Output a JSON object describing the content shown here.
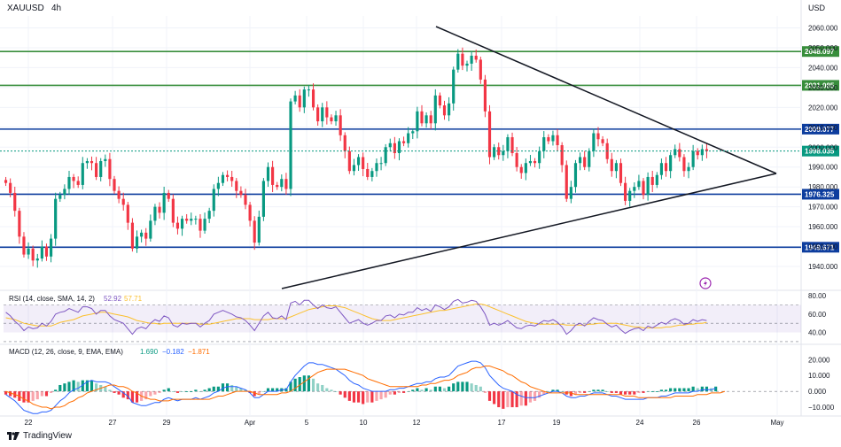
{
  "symbol": "XAUUSD",
  "timeframe": "4h",
  "currency_label": "USD",
  "brand": "TradingView",
  "chart_data": {
    "type": "candlestick",
    "title": "XAUUSD, 4h",
    "ylim": [
      1928,
      2066
    ],
    "price_ticks": [
      "2060.000",
      "2050.000",
      "2040.000",
      "2030.000",
      "2020.000",
      "2010.000",
      "2000.000",
      "1990.000",
      "1980.000",
      "1970.000",
      "1960.000",
      "1950.000",
      "1940.000"
    ],
    "x_ticks": [
      "22",
      "27",
      "29",
      "Apr",
      "5",
      "10",
      "12",
      "17",
      "19",
      "24",
      "26",
      "May"
    ],
    "series": [
      {
        "name": "XAUUSD",
        "closes": [
          1982,
          1977,
          1968,
          1955,
          1946,
          1949,
          1943,
          1944,
          1950,
          1945,
          1954,
          1974,
          1976,
          1979,
          1985,
          1983,
          1981,
          1992,
          1993,
          1992,
          1985,
          1993,
          1994,
          1984,
          1978,
          1974,
          1971,
          1962,
          1949,
          1955,
          1957,
          1954,
          1963,
          1970,
          1967,
          1977,
          1974,
          1962,
          1959,
          1964,
          1963,
          1964,
          1964,
          1958,
          1964,
          1968,
          1979,
          1982,
          1986,
          1985,
          1983,
          1978,
          1976,
          1971,
          1963,
          1952,
          1965,
          1983,
          1990,
          1981,
          1980,
          1984,
          1979,
          2023,
          2026,
          2020,
          2029,
          2029,
          2020,
          2013,
          2020,
          2015,
          2013,
          2016,
          2006,
          1998,
          1988,
          1991,
          1995,
          1989,
          1985,
          1988,
          1992,
          1992,
          2000,
          2002,
          1997,
          2003,
          2002,
          2007,
          2008,
          2018,
          2012,
          2016,
          2012,
          2026,
          2021,
          2016,
          2022,
          2039,
          2047,
          2041,
          2042,
          2046,
          2044,
          2034,
          2018,
          1995,
          2000,
          1996,
          1998,
          2005,
          1997,
          1990,
          1987,
          1992,
          1993,
          1992,
          1998,
          2005,
          2003,
          2006,
          2001,
          1991,
          1974,
          1980,
          1992,
          1995,
          1990,
          1998,
          2007,
          2004,
          2002,
          1994,
          1988,
          1992,
          1982,
          1973,
          1978,
          1980,
          1983,
          1976,
          1985,
          1981,
          1986,
          1992,
          1988,
          1996,
          1999,
          1995,
          1988,
          1990,
          1998,
          1996,
          1999,
          1998
        ],
        "last_close": "1998.035"
      }
    ],
    "levels": [
      {
        "label": "2048.097",
        "value": 2048.097,
        "color": "#388e3c"
      },
      {
        "label": "2031.085",
        "value": 2031.085,
        "color": "#388e3c"
      },
      {
        "label": "2009.077",
        "value": 2009.077,
        "color": "#0d3d9e"
      },
      {
        "label": "1976.325",
        "value": 1976.325,
        "color": "#0d3d9e"
      },
      {
        "label": "1949.671",
        "value": 1949.671,
        "color": "#0d3d9e"
      }
    ],
    "current_price": {
      "label": "1998.035",
      "value": 1998.035,
      "color": "#089981"
    },
    "rsi": {
      "legend": "RSI (14, close, SMA, 14, 2)",
      "value": "52.92",
      "value2": "57.71",
      "ticks": [
        "80.00",
        "60.00",
        "40.00"
      ],
      "ylim": [
        28,
        84
      ],
      "band": [
        40,
        70
      ],
      "series": [
        62,
        58,
        52,
        48,
        42,
        46,
        44,
        45,
        50,
        47,
        52,
        60,
        62,
        63,
        66,
        64,
        62,
        68,
        68,
        66,
        60,
        64,
        64,
        58,
        54,
        52,
        50,
        44,
        38,
        44,
        46,
        44,
        50,
        54,
        52,
        58,
        56,
        48,
        46,
        50,
        49,
        50,
        50,
        46,
        50,
        53,
        60,
        62,
        64,
        62,
        60,
        57,
        56,
        53,
        48,
        42,
        50,
        58,
        62,
        56,
        55,
        58,
        54,
        72,
        74,
        70,
        75,
        75,
        70,
        66,
        70,
        67,
        66,
        68,
        62,
        56,
        50,
        52,
        54,
        50,
        48,
        50,
        53,
        53,
        58,
        59,
        56,
        60,
        59,
        62,
        62,
        67,
        64,
        66,
        63,
        70,
        68,
        65,
        68,
        74,
        76,
        72,
        73,
        75,
        74,
        68,
        60,
        48,
        50,
        48,
        50,
        53,
        49,
        45,
        44,
        47,
        48,
        47,
        50,
        53,
        52,
        54,
        51,
        46,
        38,
        42,
        48,
        50,
        47,
        52,
        56,
        54,
        53,
        49,
        46,
        48,
        43,
        39,
        42,
        44,
        45,
        42,
        47,
        45,
        48,
        51,
        49,
        53,
        55,
        53,
        49,
        50,
        54,
        52,
        54,
        53
      ],
      "sma": [
        56,
        55,
        54,
        52,
        50,
        49,
        48,
        47,
        47,
        47,
        47,
        49,
        51,
        52,
        53,
        54,
        56,
        58,
        59,
        60,
        61,
        62,
        62,
        61,
        60,
        59,
        58,
        57,
        55,
        53,
        52,
        51,
        50,
        50,
        49,
        50,
        50,
        50,
        50,
        50,
        50,
        50,
        50,
        49,
        49,
        49,
        50,
        51,
        52,
        53,
        54,
        55,
        55,
        55,
        55,
        54,
        54,
        54,
        54,
        55,
        55,
        55,
        55,
        57,
        59,
        61,
        63,
        65,
        66,
        67,
        68,
        69,
        69,
        69,
        68,
        67,
        65,
        63,
        61,
        59,
        57,
        55,
        54,
        53,
        53,
        53,
        54,
        55,
        56,
        57,
        58,
        59,
        60,
        61,
        62,
        63,
        64,
        64,
        65,
        66,
        67,
        68,
        69,
        70,
        71,
        71,
        70,
        68,
        66,
        64,
        62,
        60,
        58,
        56,
        54,
        52,
        51,
        50,
        49,
        49,
        49,
        49,
        49,
        49,
        48,
        48,
        48,
        48,
        48,
        49,
        49,
        50,
        50,
        50,
        50,
        50,
        49,
        48,
        47,
        46,
        46,
        45,
        45,
        45,
        45,
        45,
        46,
        46,
        47,
        48,
        48,
        49,
        49,
        50,
        50,
        51
      ]
    },
    "macd": {
      "legend": "MACD (12, 26, close, 9, EMA, EMA)",
      "value1": "1.690",
      "value2": "−0.182",
      "value3": "−1.871",
      "ticks": [
        "20.000",
        "10.000",
        "0.000",
        "−10.000"
      ],
      "ylim": [
        -15,
        28
      ],
      "macd": [
        -2,
        -4,
        -6,
        -9,
        -12,
        -13,
        -14,
        -14,
        -13,
        -13,
        -12,
        -9,
        -6,
        -4,
        -1,
        1,
        2,
        4,
        6,
        7,
        6,
        6,
        6,
        5,
        3,
        1,
        -1,
        -3,
        -7,
        -8,
        -9,
        -9,
        -8,
        -7,
        -7,
        -5,
        -4,
        -5,
        -6,
        -5,
        -5,
        -5,
        -4,
        -5,
        -4,
        -3,
        -1,
        0,
        2,
        3,
        3,
        3,
        2,
        1,
        -1,
        -4,
        -4,
        -2,
        0,
        0,
        0,
        1,
        1,
        6,
        10,
        13,
        16,
        18,
        18,
        17,
        17,
        16,
        15,
        14,
        12,
        10,
        7,
        5,
        4,
        2,
        1,
        0,
        0,
        0,
        0,
        1,
        1,
        2,
        2,
        3,
        4,
        5,
        5,
        6,
        6,
        8,
        9,
        9,
        10,
        13,
        16,
        17,
        18,
        19,
        19,
        18,
        15,
        10,
        7,
        4,
        2,
        1,
        0,
        -2,
        -3,
        -4,
        -4,
        -4,
        -3,
        -2,
        -1,
        0,
        0,
        -1,
        -3,
        -4,
        -4,
        -3,
        -3,
        -2,
        -1,
        -1,
        -1,
        -2,
        -3,
        -3,
        -4,
        -5,
        -5,
        -5,
        -5,
        -5,
        -4,
        -4,
        -4,
        -3,
        -3,
        -2,
        -1,
        -1,
        -1,
        -1,
        0,
        0,
        1,
        1,
        1,
        2
      ],
      "signal": [
        0,
        -1,
        -2,
        -3,
        -5,
        -6,
        -8,
        -9,
        -10,
        -10,
        -11,
        -10,
        -10,
        -9,
        -7,
        -6,
        -4,
        -3,
        -1,
        0,
        1,
        2,
        3,
        4,
        4,
        3,
        3,
        2,
        0,
        -1,
        -3,
        -4,
        -5,
        -5,
        -6,
        -6,
        -6,
        -5,
        -5,
        -5,
        -5,
        -5,
        -5,
        -5,
        -5,
        -5,
        -4,
        -3,
        -3,
        -2,
        -1,
        0,
        0,
        0,
        0,
        -1,
        -2,
        -2,
        -2,
        -2,
        -2,
        -1,
        -1,
        0,
        2,
        4,
        6,
        8,
        10,
        12,
        13,
        14,
        14,
        14,
        14,
        14,
        13,
        12,
        11,
        10,
        8,
        7,
        6,
        5,
        4,
        3,
        3,
        3,
        3,
        3,
        3,
        3,
        4,
        4,
        5,
        5,
        6,
        7,
        7,
        8,
        10,
        11,
        12,
        14,
        15,
        15,
        16,
        16,
        15,
        14,
        13,
        11,
        10,
        8,
        6,
        5,
        3,
        2,
        1,
        0,
        -1,
        -1,
        -1,
        -1,
        -1,
        -1,
        -2,
        -2,
        -2,
        -2,
        -2,
        -2,
        -2,
        -2,
        -2,
        -2,
        -2,
        -3,
        -3,
        -3,
        -4,
        -4,
        -4,
        -4,
        -4,
        -4,
        -4,
        -4,
        -3,
        -3,
        -3,
        -3,
        -3,
        -2,
        -2,
        -2,
        -1,
        -1,
        -1,
        0
      ],
      "hist_neg_color": "#f23645",
      "hist_pos_color": "#089981"
    }
  }
}
